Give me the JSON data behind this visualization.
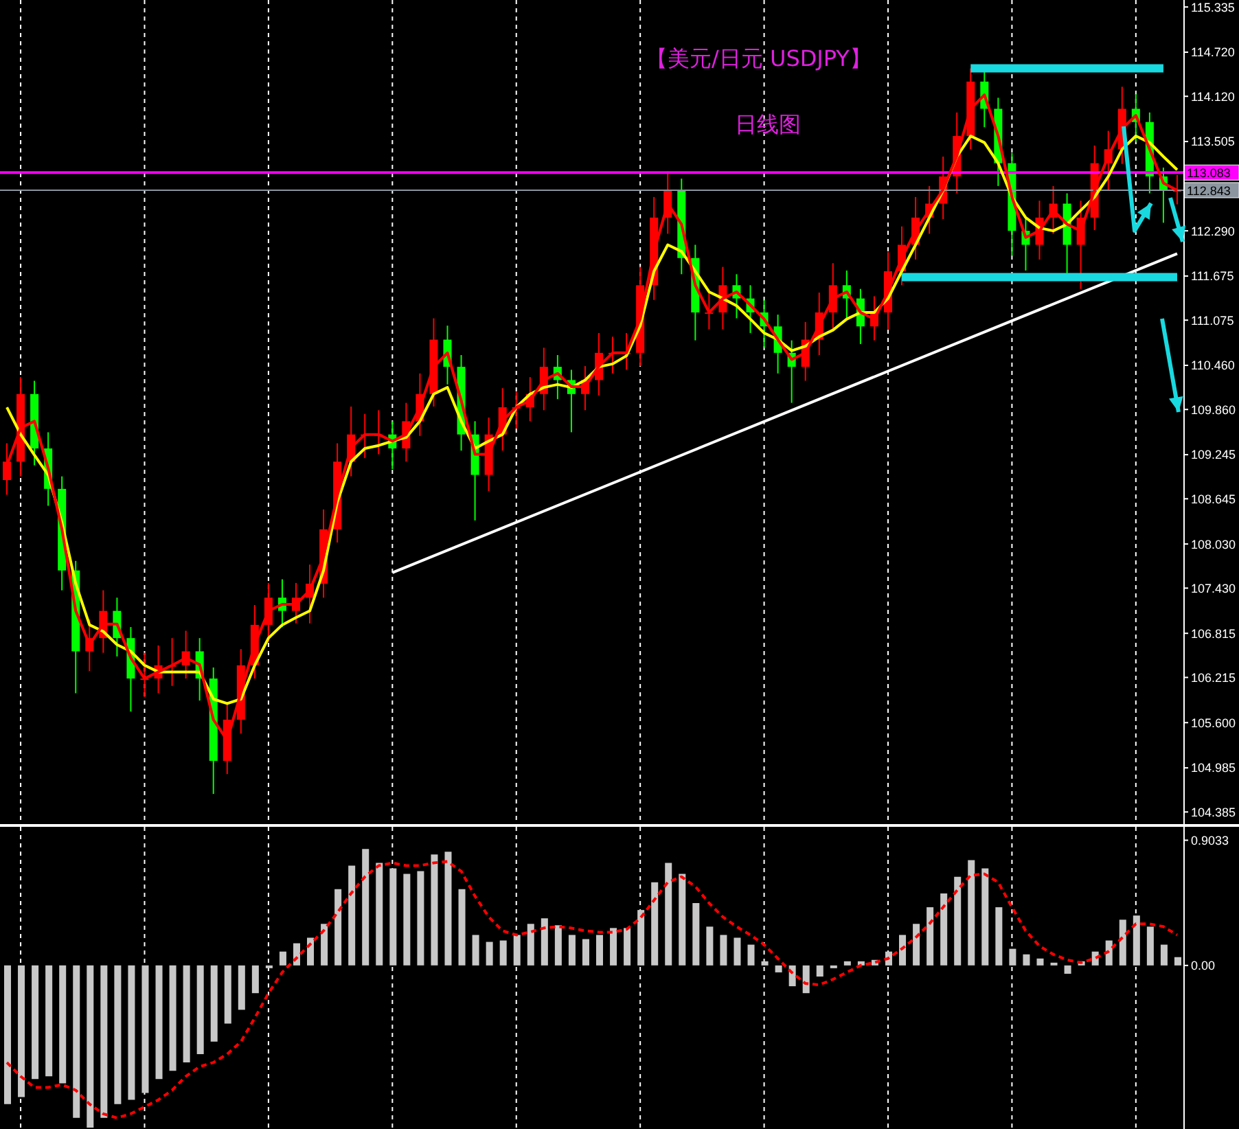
{
  "chart_data": [
    {
      "type": "candlestick",
      "title": "【美元/日元 USDJPY】",
      "subtitle": "日线图",
      "grid": "x",
      "categories": [
        null,
        null,
        null,
        null,
        null,
        null,
        null,
        null,
        null,
        null,
        null,
        null,
        null,
        null,
        null,
        null,
        null,
        null,
        null,
        null,
        null,
        null,
        null,
        null,
        null,
        null,
        null,
        null,
        null,
        null,
        null,
        null,
        null,
        null,
        null,
        null,
        null,
        null,
        null,
        null,
        null,
        null,
        null,
        null,
        null,
        null,
        null,
        null,
        null,
        null,
        null,
        null,
        null,
        null,
        null,
        null,
        null,
        null,
        null,
        null,
        null,
        null,
        null,
        null,
        null,
        null,
        null,
        null,
        null,
        null,
        null,
        null,
        null,
        null,
        null,
        null,
        null,
        null,
        null,
        null,
        null,
        null,
        null,
        null,
        null,
        null
      ],
      "ohlc": [
        [
          108.9,
          109.4,
          108.7,
          109.15
        ],
        [
          109.15,
          110.3,
          108.95,
          110.07
        ],
        [
          110.07,
          110.25,
          109.1,
          109.33
        ],
        [
          109.33,
          109.55,
          108.55,
          108.78
        ],
        [
          108.78,
          108.95,
          107.4,
          107.67
        ],
        [
          107.67,
          107.8,
          106.0,
          106.57
        ],
        [
          106.57,
          107.0,
          106.3,
          106.75
        ],
        [
          106.75,
          107.4,
          106.55,
          107.12
        ],
        [
          107.12,
          107.3,
          106.5,
          106.75
        ],
        [
          106.75,
          106.9,
          105.75,
          106.2
        ],
        [
          106.2,
          106.55,
          105.95,
          106.2
        ],
        [
          106.2,
          106.65,
          106.0,
          106.38
        ],
        [
          106.38,
          106.75,
          106.1,
          106.38
        ],
        [
          106.38,
          106.85,
          106.2,
          106.57
        ],
        [
          106.57,
          106.75,
          105.9,
          106.2
        ],
        [
          106.2,
          106.35,
          104.63,
          105.08
        ],
        [
          105.08,
          105.85,
          104.9,
          105.64
        ],
        [
          105.64,
          106.6,
          105.45,
          106.38
        ],
        [
          106.38,
          107.2,
          106.2,
          106.93
        ],
        [
          106.93,
          107.5,
          106.7,
          107.3
        ],
        [
          107.3,
          107.55,
          106.9,
          107.12
        ],
        [
          107.12,
          107.5,
          106.95,
          107.3
        ],
        [
          107.3,
          107.75,
          106.95,
          107.49
        ],
        [
          107.49,
          108.5,
          107.3,
          108.23
        ],
        [
          108.23,
          109.4,
          108.05,
          109.15
        ],
        [
          109.15,
          109.9,
          108.95,
          109.52
        ],
        [
          109.52,
          109.8,
          109.2,
          109.52
        ],
        [
          109.52,
          109.85,
          109.25,
          109.52
        ],
        [
          109.52,
          109.7,
          109.05,
          109.33
        ],
        [
          109.33,
          109.95,
          109.15,
          109.7
        ],
        [
          109.7,
          110.35,
          109.5,
          110.07
        ],
        [
          110.07,
          111.1,
          109.9,
          110.81
        ],
        [
          110.81,
          111.0,
          110.2,
          110.44
        ],
        [
          110.44,
          110.6,
          109.3,
          109.52
        ],
        [
          109.52,
          109.7,
          108.35,
          108.97
        ],
        [
          108.97,
          109.75,
          108.75,
          109.52
        ],
        [
          109.52,
          110.15,
          109.3,
          109.89
        ],
        [
          109.89,
          110.1,
          109.6,
          109.89
        ],
        [
          109.89,
          110.3,
          109.7,
          110.07
        ],
        [
          110.07,
          110.7,
          109.85,
          110.44
        ],
        [
          110.44,
          110.6,
          110.0,
          110.26
        ],
        [
          110.26,
          110.4,
          109.55,
          110.07
        ],
        [
          110.07,
          110.45,
          109.85,
          110.26
        ],
        [
          110.26,
          110.9,
          110.05,
          110.63
        ],
        [
          110.63,
          110.85,
          110.35,
          110.63
        ],
        [
          110.63,
          110.9,
          110.4,
          110.63
        ],
        [
          110.63,
          111.8,
          110.45,
          111.55
        ],
        [
          111.55,
          112.75,
          111.35,
          112.47
        ],
        [
          112.47,
          113.1,
          112.25,
          112.84
        ],
        [
          112.84,
          113.0,
          111.7,
          111.92
        ],
        [
          111.92,
          112.1,
          110.8,
          111.18
        ],
        [
          111.18,
          111.45,
          110.95,
          111.18
        ],
        [
          111.18,
          111.8,
          110.95,
          111.55
        ],
        [
          111.55,
          111.7,
          111.1,
          111.37
        ],
        [
          111.37,
          111.55,
          110.9,
          111.18
        ],
        [
          111.18,
          111.35,
          110.7,
          110.99
        ],
        [
          110.99,
          111.15,
          110.35,
          110.63
        ],
        [
          110.63,
          110.8,
          109.95,
          110.44
        ],
        [
          110.44,
          111.05,
          110.25,
          110.81
        ],
        [
          110.81,
          111.45,
          110.6,
          111.18
        ],
        [
          111.18,
          111.85,
          110.95,
          111.55
        ],
        [
          111.55,
          111.75,
          111.1,
          111.37
        ],
        [
          111.37,
          111.5,
          110.75,
          110.99
        ],
        [
          110.99,
          111.4,
          110.8,
          111.18
        ],
        [
          111.18,
          112.0,
          110.95,
          111.74
        ],
        [
          111.74,
          112.35,
          111.55,
          112.1
        ],
        [
          112.1,
          112.75,
          111.9,
          112.47
        ],
        [
          112.47,
          112.9,
          112.25,
          112.66
        ],
        [
          112.66,
          113.3,
          112.45,
          113.03
        ],
        [
          113.03,
          113.9,
          112.8,
          113.58
        ],
        [
          113.58,
          114.5,
          113.4,
          114.32
        ],
        [
          114.32,
          114.45,
          113.7,
          113.95
        ],
        [
          113.95,
          114.1,
          112.9,
          113.21
        ],
        [
          113.21,
          113.35,
          111.95,
          112.29
        ],
        [
          112.29,
          112.45,
          111.75,
          112.1
        ],
        [
          112.1,
          112.7,
          111.9,
          112.47
        ],
        [
          112.47,
          112.9,
          112.25,
          112.66
        ],
        [
          112.66,
          112.8,
          111.7,
          112.1
        ],
        [
          112.1,
          112.7,
          111.5,
          112.47
        ],
        [
          112.47,
          113.45,
          112.3,
          113.21
        ],
        [
          113.21,
          113.65,
          112.85,
          113.4
        ],
        [
          113.4,
          114.25,
          113.2,
          113.95
        ],
        [
          113.95,
          114.15,
          113.5,
          113.77
        ],
        [
          113.77,
          113.9,
          112.8,
          113.03
        ],
        [
          113.03,
          113.15,
          112.4,
          112.84
        ],
        [
          112.84,
          113.05,
          112.65,
          112.84
        ]
      ],
      "colors": [
        "#ff0000",
        "#ff0000",
        "#00ff00",
        "#00ff00",
        "#00ff00",
        "#00ff00",
        "#ff0000",
        "#ff0000",
        "#00ff00",
        "#00ff00",
        "#ff0000",
        "#ff0000",
        "#ff0000",
        "#ff0000",
        "#00ff00",
        "#00ff00",
        "#ff0000",
        "#ff0000",
        "#ff0000",
        "#ff0000",
        "#00ff00",
        "#ff0000",
        "#ff0000",
        "#ff0000",
        "#ff0000",
        "#ff0000",
        "#ff0000",
        "#ff0000",
        "#00ff00",
        "#ff0000",
        "#ff0000",
        "#ff0000",
        "#00ff00",
        "#00ff00",
        "#00ff00",
        "#ff0000",
        "#ff0000",
        "#ff0000",
        "#ff0000",
        "#ff0000",
        "#00ff00",
        "#00ff00",
        "#ff0000",
        "#ff0000",
        "#ff0000",
        "#ff0000",
        "#ff0000",
        "#ff0000",
        "#ff0000",
        "#00ff00",
        "#00ff00",
        "#ff0000",
        "#ff0000",
        "#00ff00",
        "#00ff00",
        "#00ff00",
        "#00ff00",
        "#00ff00",
        "#ff0000",
        "#ff0000",
        "#ff0000",
        "#00ff00",
        "#00ff00",
        "#ff0000",
        "#ff0000",
        "#ff0000",
        "#ff0000",
        "#ff0000",
        "#ff0000",
        "#ff0000",
        "#ff0000",
        "#00ff00",
        "#00ff00",
        "#00ff00",
        "#00ff00",
        "#ff0000",
        "#ff0000",
        "#00ff00",
        "#ff0000",
        "#ff0000",
        "#ff0000",
        "#ff0000",
        "#00ff00",
        "#00ff00",
        "#00ff00",
        "#ff0000"
      ],
      "series": [
        {
          "type": "line",
          "color": "#ffff00",
          "values": [
            109.89,
            109.52,
            109.24,
            108.97,
            108.32,
            107.49,
            106.93,
            106.84,
            106.66,
            106.57,
            106.38,
            106.29,
            106.29,
            106.29,
            106.29,
            105.92,
            105.86,
            105.92,
            106.38,
            106.75,
            106.93,
            107.03,
            107.12,
            107.67,
            108.6,
            109.15,
            109.33,
            109.37,
            109.43,
            109.48,
            109.7,
            110.07,
            110.16,
            109.7,
            109.33,
            109.43,
            109.52,
            109.89,
            110.07,
            110.16,
            110.2,
            110.16,
            110.26,
            110.44,
            110.48,
            110.59,
            111.0,
            111.74,
            112.1,
            112.01,
            111.74,
            111.46,
            111.37,
            111.27,
            111.09,
            110.9,
            110.81,
            110.66,
            110.72,
            110.85,
            110.94,
            111.09,
            111.18,
            111.18,
            111.37,
            111.74,
            112.1,
            112.47,
            112.84,
            113.3,
            113.58,
            113.49,
            113.21,
            112.75,
            112.47,
            112.33,
            112.29,
            112.38,
            112.57,
            112.75,
            113.03,
            113.4,
            113.58,
            113.49,
            113.3,
            113.12
          ]
        },
        {
          "type": "line",
          "color": "#ff0000",
          "values": [
            109.1,
            109.61,
            109.7,
            109.06,
            108.23,
            107.12,
            106.66,
            106.94,
            106.94,
            106.48,
            106.2,
            106.29,
            106.38,
            106.48,
            106.39,
            105.64,
            105.36,
            106.01,
            106.66,
            107.12,
            107.21,
            107.21,
            107.4,
            107.86,
            108.69,
            109.34,
            109.52,
            109.52,
            109.43,
            109.52,
            109.89,
            110.44,
            110.63,
            109.98,
            109.25,
            109.25,
            109.71,
            109.89,
            109.98,
            110.26,
            110.35,
            110.17,
            110.17,
            110.45,
            110.63,
            110.63,
            111.09,
            112.01,
            112.66,
            112.38,
            111.55,
            111.18,
            111.37,
            111.46,
            111.28,
            111.09,
            110.81,
            110.54,
            110.63,
            111.0,
            111.37,
            111.46,
            111.18,
            111.09,
            111.46,
            111.92,
            112.29,
            112.57,
            112.85,
            113.31,
            113.95,
            114.14,
            113.58,
            112.75,
            112.2,
            112.29,
            112.57,
            112.38,
            112.29,
            112.84,
            113.31,
            113.68,
            113.86,
            113.4,
            112.94,
            112.84
          ]
        },
        {
          "type": "line",
          "color": "#ffffff",
          "values": [
            null,
            null,
            null,
            null,
            null,
            null,
            null,
            null,
            null,
            null,
            null,
            null,
            null,
            null,
            null,
            null,
            null,
            null,
            null,
            null,
            null,
            null,
            null,
            null,
            null,
            null,
            null,
            null,
            107.64,
            null,
            null,
            null,
            null,
            null,
            null,
            null,
            null,
            null,
            null,
            null,
            null,
            null,
            null,
            null,
            null,
            null,
            null,
            null,
            null,
            null,
            null,
            null,
            null,
            null,
            null,
            null,
            null,
            null,
            null,
            null,
            null,
            null,
            null,
            null,
            null,
            null,
            null,
            null,
            null,
            null,
            null,
            null,
            null,
            null,
            null,
            null,
            null,
            null,
            null,
            null,
            null,
            null,
            null,
            null,
            null,
            111.98
          ]
        },
        {
          "type": "line",
          "color": "#19d9e0",
          "values": [
            null,
            null,
            null,
            null,
            null,
            null,
            null,
            null,
            null,
            null,
            null,
            null,
            null,
            null,
            null,
            null,
            null,
            null,
            null,
            null,
            null,
            null,
            null,
            null,
            null,
            null,
            null,
            null,
            null,
            null,
            null,
            null,
            null,
            null,
            null,
            null,
            null,
            null,
            null,
            null,
            null,
            null,
            null,
            null,
            null,
            null,
            null,
            null,
            null,
            null,
            null,
            null,
            null,
            null,
            null,
            null,
            null,
            null,
            null,
            null,
            null,
            null,
            null,
            null,
            null,
            null,
            null,
            null,
            null,
            null,
            114.5,
            null,
            null,
            null,
            null,
            null,
            null,
            null,
            null,
            null,
            null,
            null,
            null,
            null,
            114.5,
            null
          ]
        },
        {
          "type": "line",
          "color": "#19d9e0",
          "values": [
            null,
            null,
            null,
            null,
            null,
            null,
            null,
            null,
            null,
            null,
            null,
            null,
            null,
            null,
            null,
            null,
            null,
            null,
            null,
            null,
            null,
            null,
            null,
            null,
            null,
            null,
            null,
            null,
            null,
            null,
            null,
            null,
            null,
            null,
            null,
            null,
            null,
            null,
            null,
            null,
            null,
            null,
            null,
            null,
            null,
            null,
            null,
            null,
            null,
            null,
            null,
            null,
            null,
            null,
            null,
            null,
            null,
            null,
            null,
            null,
            null,
            null,
            null,
            null,
            null,
            111.66,
            null,
            null,
            null,
            null,
            null,
            null,
            null,
            null,
            null,
            null,
            null,
            null,
            null,
            null,
            null,
            null,
            null,
            null,
            null,
            111.66
          ]
        }
      ],
      "ylim": [
        104.22,
        115.43
      ],
      "yticks": [
        115.335,
        {
          "value": 114.72,
          "label": "114.720"
        },
        {
          "value": 114.12,
          "label": "114.120"
        },
        113.505,
        {
          "value": 112.29,
          "label": "112.290"
        },
        111.675,
        111.075,
        {
          "value": 110.46,
          "label": "110.460"
        },
        {
          "value": 109.86,
          "label": "109.860"
        },
        109.245,
        108.645,
        {
          "value": 108.03,
          "label": "108.030"
        },
        {
          "value": 107.43,
          "label": "107.430"
        },
        106.815,
        106.215,
        {
          "value": 105.6,
          "label": "105.600"
        },
        104.985,
        104.385
      ],
      "ref_lines": [
        {
          "axis": "y",
          "value": 113.083,
          "label": "113.083",
          "color": "#ff00ff"
        },
        {
          "axis": "y",
          "value": 112.843,
          "label": "112.843",
          "color": "#8c96a0"
        }
      ]
    },
    {
      "type": "bar",
      "grid": "x",
      "categories": [
        null,
        null,
        null,
        null,
        null,
        null,
        null,
        null,
        null,
        null,
        null,
        null,
        null,
        null,
        null,
        null,
        null,
        null,
        null,
        null,
        null,
        null,
        null,
        null,
        null,
        null,
        null,
        null,
        null,
        null,
        null,
        null,
        null,
        null,
        null,
        null,
        null,
        null,
        null,
        null,
        null,
        null,
        null,
        null,
        null,
        null,
        null,
        null,
        null,
        null,
        null,
        null,
        null,
        null,
        null,
        null,
        null,
        null,
        null,
        null,
        null,
        null,
        null,
        null,
        null,
        null,
        null,
        null,
        null,
        null,
        null,
        null,
        null,
        null,
        null,
        null,
        null,
        null,
        null,
        null,
        null,
        null,
        null,
        null,
        null,
        null
      ],
      "series": [
        {
          "type": "bar",
          "color": "#c8c8c8",
          "values": [
            -1.0,
            -0.95,
            -0.82,
            -0.8,
            -0.85,
            -1.1,
            -1.17,
            -1.1,
            -1.0,
            -0.97,
            -0.92,
            -0.82,
            -0.76,
            -0.7,
            -0.64,
            -0.55,
            -0.42,
            -0.32,
            -0.2,
            -0.02,
            0.1,
            0.16,
            0.2,
            0.3,
            0.55,
            0.72,
            0.84,
            0.74,
            0.7,
            0.66,
            0.68,
            0.8,
            0.82,
            0.55,
            0.22,
            0.17,
            0.18,
            0.22,
            0.3,
            0.34,
            0.29,
            0.22,
            0.19,
            0.22,
            0.27,
            0.27,
            0.4,
            0.6,
            0.74,
            0.66,
            0.45,
            0.28,
            0.22,
            0.2,
            0.15,
            0.03,
            -0.05,
            -0.15,
            -0.2,
            -0.08,
            -0.02,
            0.03,
            0.03,
            0.04,
            0.1,
            0.22,
            0.3,
            0.42,
            0.52,
            0.64,
            0.76,
            0.7,
            0.42,
            0.12,
            0.08,
            0.05,
            0.02,
            -0.06,
            0.03,
            0.1,
            0.18,
            0.33,
            0.36,
            0.28,
            0.15,
            0.06
          ]
        },
        {
          "type": "line",
          "color": "#ff0000",
          "line_style": "dashed",
          "values": [
            -0.7,
            -0.8,
            -0.88,
            -0.88,
            -0.86,
            -0.9,
            -1.0,
            -1.07,
            -1.1,
            -1.07,
            -1.02,
            -0.97,
            -0.9,
            -0.8,
            -0.73,
            -0.7,
            -0.64,
            -0.55,
            -0.38,
            -0.2,
            -0.05,
            0.05,
            0.15,
            0.25,
            0.38,
            0.52,
            0.64,
            0.72,
            0.74,
            0.72,
            0.72,
            0.74,
            0.75,
            0.68,
            0.5,
            0.35,
            0.25,
            0.22,
            0.24,
            0.27,
            0.28,
            0.27,
            0.25,
            0.24,
            0.24,
            0.26,
            0.34,
            0.47,
            0.6,
            0.64,
            0.57,
            0.45,
            0.35,
            0.28,
            0.22,
            0.15,
            0.05,
            -0.05,
            -0.13,
            -0.14,
            -0.1,
            -0.05,
            0.0,
            0.02,
            0.05,
            0.12,
            0.2,
            0.3,
            0.42,
            0.54,
            0.65,
            0.66,
            0.6,
            0.42,
            0.25,
            0.14,
            0.08,
            0.04,
            0.02,
            0.05,
            0.1,
            0.2,
            0.3,
            0.3,
            0.28,
            0.22
          ]
        }
      ],
      "ylim": [
        -1.18,
        1.0
      ],
      "yticks": [
        0.9033,
        {
          "value": 0,
          "label": "0.00"
        }
      ]
    }
  ]
}
